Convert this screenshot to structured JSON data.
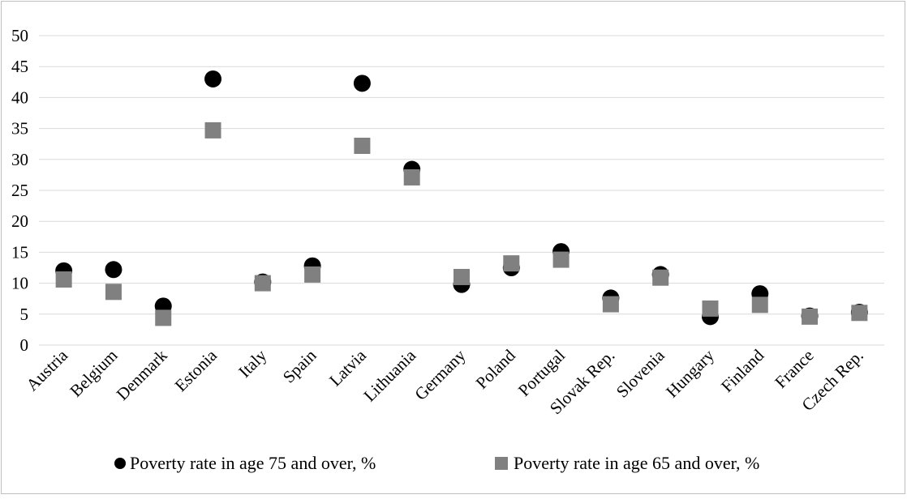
{
  "chart_data": {
    "type": "scatter",
    "categories": [
      "Austria",
      "Belgium",
      "Denmark",
      "Estonia",
      "Italy",
      "Spain",
      "Latvia",
      "Lithuania",
      "Germany",
      "Poland",
      "Portugal",
      "Slovak Rep.",
      "Slovenia",
      "Hungary",
      "Finland",
      "France",
      "Czech Rep."
    ],
    "series": [
      {
        "name": "Poverty rate in age 75 and over, %",
        "marker": "circle",
        "color": "#000000",
        "values": [
          12.0,
          12.2,
          6.3,
          43.0,
          10.2,
          12.8,
          42.3,
          28.4,
          9.8,
          12.5,
          15.1,
          7.6,
          11.4,
          4.6,
          8.3,
          4.7,
          5.3
        ]
      },
      {
        "name": "Poverty rate in age 65 and over, %",
        "marker": "square",
        "color": "#808080",
        "values": [
          10.6,
          8.6,
          4.4,
          34.7,
          10.0,
          11.4,
          32.2,
          27.1,
          11.0,
          13.2,
          13.8,
          6.6,
          10.9,
          5.9,
          6.5,
          4.6,
          5.2
        ]
      }
    ],
    "y_ticks": [
      "0",
      "5",
      "10",
      "15",
      "20",
      "25",
      "30",
      "35",
      "40",
      "45",
      "50"
    ],
    "ylim": [
      0,
      50
    ],
    "grid": "horizontal",
    "legend_position": "bottom",
    "title": "",
    "xlabel": "",
    "ylabel": ""
  }
}
